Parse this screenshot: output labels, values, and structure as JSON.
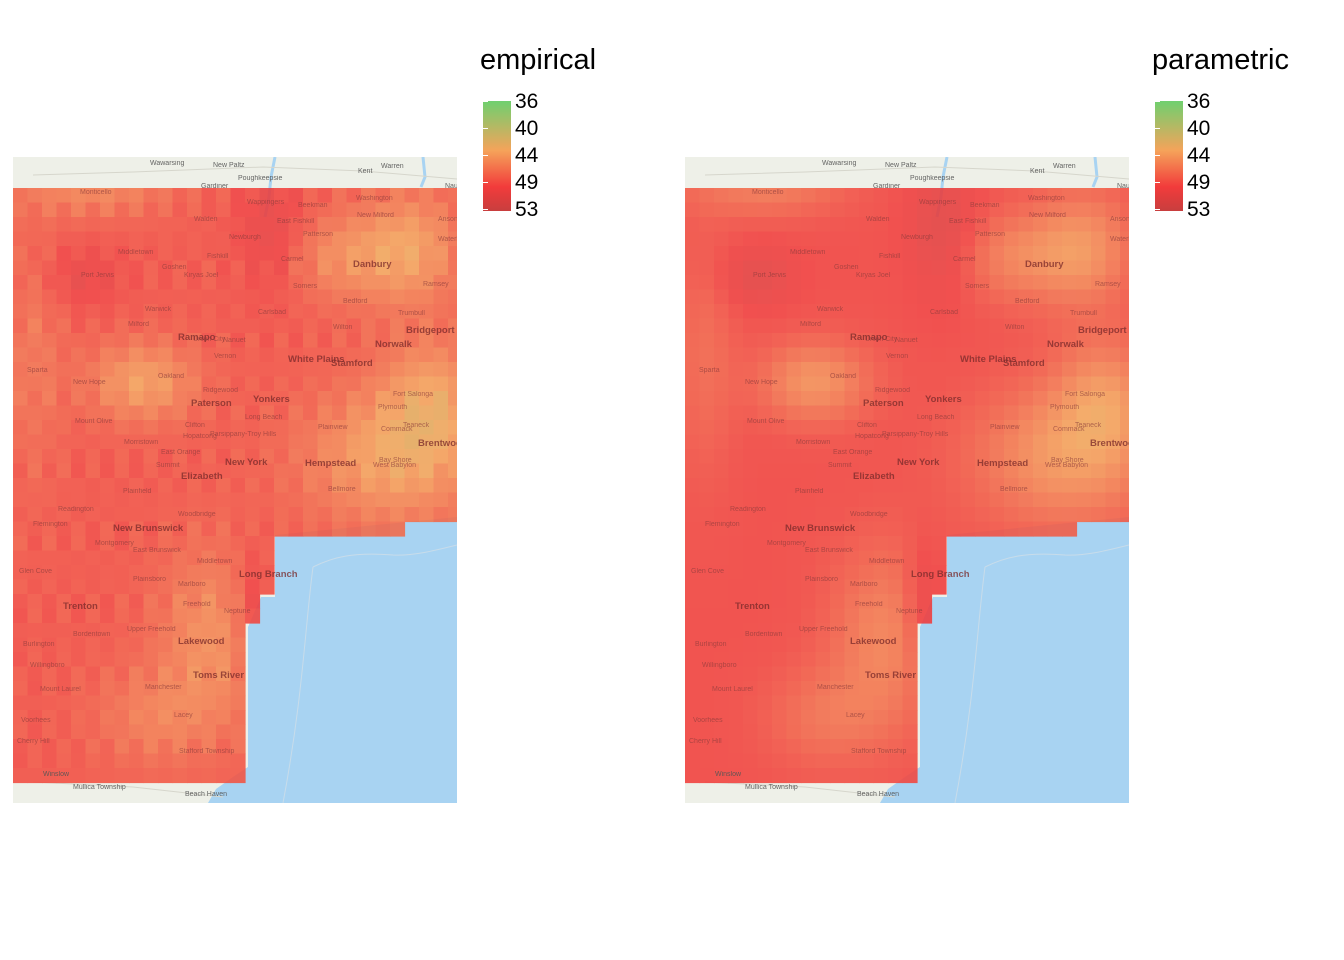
{
  "panels": [
    {
      "id": "empirical",
      "legend_title": "empirical"
    },
    {
      "id": "parametric",
      "legend_title": "parametric"
    }
  ],
  "legend": {
    "ticks": [
      "36",
      "40",
      "44",
      "49",
      "53"
    ],
    "colors": {
      "low": "#6fd06f",
      "mid": "#f5a35a",
      "high": "#f23b3b",
      "max": "#c83e3e"
    }
  },
  "map_labels": {
    "large": [
      "Danbury",
      "Norwalk",
      "Bridgeport",
      "Stamford",
      "Ramapo",
      "White Plains",
      "Paterson",
      "Yonkers",
      "Brentwood",
      "Hempstead",
      "New York",
      "Elizabeth",
      "New Brunswick",
      "Long Branch",
      "Trenton",
      "Lakewood",
      "Toms River"
    ],
    "small": [
      "Wawarsing",
      "New Paltz",
      "Poughkeepsie",
      "Kent",
      "Warren",
      "Gardiner",
      "Monticello",
      "Wappingers",
      "Beekman",
      "Washington",
      "Walden",
      "East Fishkill",
      "New Milford",
      "Newburgh",
      "Patterson",
      "Middletown",
      "Goshen",
      "Fishkill",
      "Carmel",
      "Port Jervis",
      "Kiryas Joel",
      "Somers",
      "Warwick",
      "Carlsbad",
      "Bedford",
      "Trumbull",
      "Wilton",
      "Sparta",
      "Oakland",
      "Ridgewood",
      "Mount Olive",
      "Morristown",
      "Clifton",
      "East Orange",
      "Summit",
      "Plainfield",
      "Readington",
      "Flemington",
      "Montgomery",
      "East Brunswick",
      "Middletown",
      "Woodbridge",
      "Plainsboro",
      "Marlboro",
      "Freehold",
      "Neptune",
      "Bordentown",
      "Upper Freehold",
      "Manchester",
      "Lacey",
      "Stafford Township",
      "Burlington",
      "Willingboro",
      "Mount Laurel",
      "Voorhees",
      "Cherry Hill",
      "Winslow",
      "Mullica Township",
      "Beach Haven",
      "Commack",
      "Bay Shore",
      "West Babylon",
      "Bellmore",
      "Long Beach",
      "Teaneck",
      "Plainview",
      "Glen Cove",
      "New Hope",
      "Hopatcong",
      "Parsippany-Troy Hills",
      "Union City",
      "Ramsey",
      "Ansonia",
      "Waterbury",
      "Naugatuck",
      "Plymouth",
      "Fort Salonga",
      "Milford",
      "Vernon",
      "Nanuet",
      "New City"
    ]
  }
}
